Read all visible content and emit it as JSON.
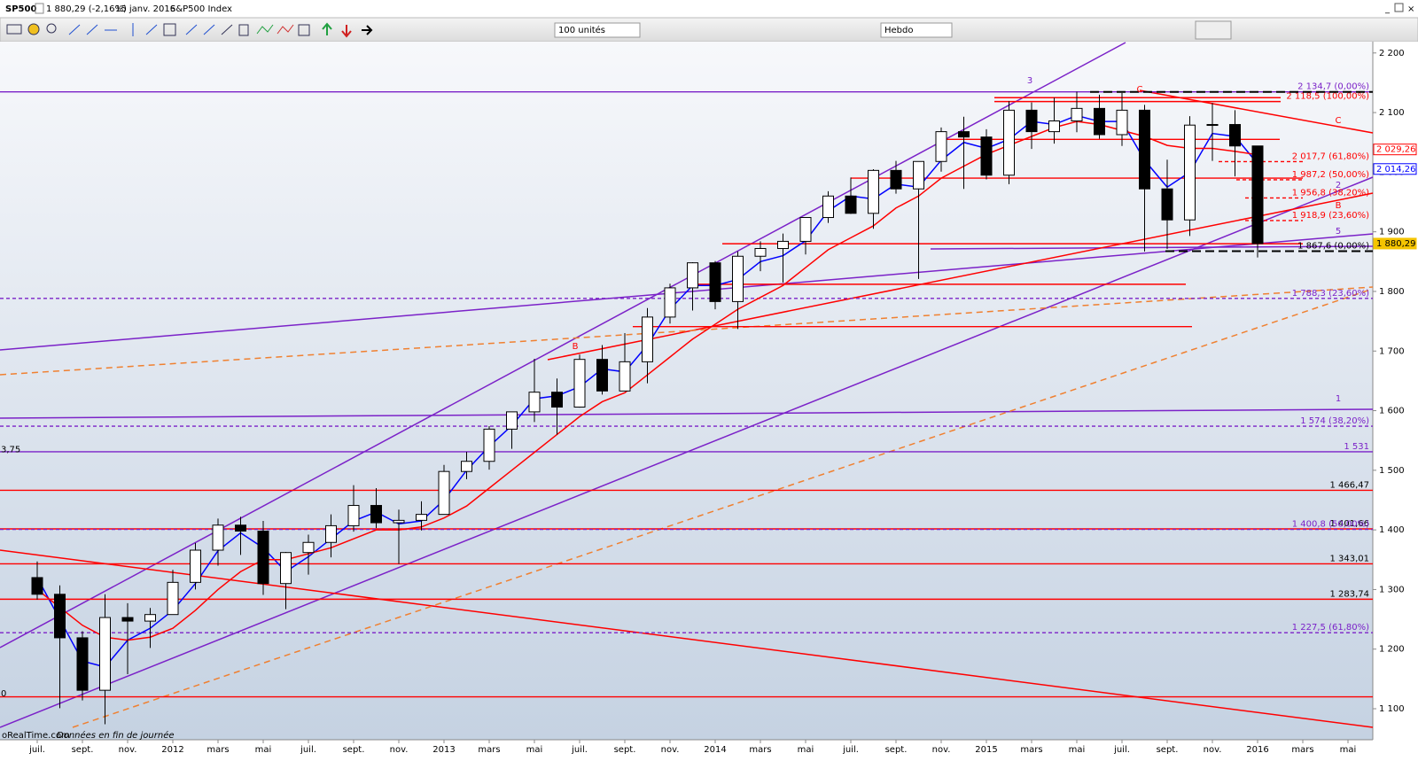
{
  "header": {
    "symbol": "SP500",
    "quote": "1 880,29 (-2,16%)",
    "date": "15 janv. 2016",
    "name": "S&P500 Index"
  },
  "toolbar": {
    "units": "100 unités",
    "period": "Hebdo"
  },
  "footer": {
    "source": "oRealTime.com",
    "note": "Données en fin de journée"
  },
  "chart_data": {
    "type": "candlestick",
    "categories": [
      "juil.",
      null,
      "sept.",
      null,
      "nov.",
      null,
      "2012",
      null,
      "mars",
      null,
      "mai",
      null,
      "juil.",
      null,
      "sept.",
      null,
      "nov.",
      null,
      "2013",
      null,
      "mars",
      null,
      "mai",
      null,
      "juil.",
      null,
      "sept.",
      null,
      "nov.",
      null,
      "2014",
      null,
      "mars",
      null,
      "mai",
      null,
      "juil.",
      null,
      "sept.",
      null,
      "nov.",
      null,
      "2015",
      null,
      "mars",
      null,
      "mai",
      null,
      "juil.",
      null,
      "sept.",
      null,
      "nov.",
      null,
      "2016",
      null,
      "mars",
      null,
      "mai"
    ],
    "open": [
      1320,
      1292,
      1219,
      1131,
      1253,
      1247,
      1258,
      1312,
      1366,
      1408,
      1398,
      1310,
      1362,
      1379,
      1407,
      1441,
      1412,
      1416,
      1426,
      1498,
      1515,
      1569,
      1598,
      1631,
      1606,
      1686,
      1633,
      1682,
      1757,
      1806,
      1848,
      1783,
      1859,
      1872,
      1884,
      1924,
      1960,
      1931,
      2003,
      1972,
      2018,
      2068,
      2059,
      1995,
      2104,
      2068,
      2086,
      2107,
      2063,
      2104,
      1972,
      1920,
      2079,
      2080,
      2044,
      null,
      null,
      null,
      null
    ],
    "high": [
      1347,
      1307,
      1230,
      1292,
      1277,
      1269,
      1333,
      1378,
      1419,
      1422,
      1415,
      1363,
      1392,
      1426,
      1475,
      1470,
      1434,
      1448,
      1509,
      1531,
      1574,
      1598,
      1687,
      1654,
      1694,
      1710,
      1730,
      1772,
      1813,
      1849,
      1851,
      1867,
      1884,
      1897,
      1924,
      1968,
      1991,
      2005,
      2019,
      2018,
      2075,
      2093,
      2072,
      2119,
      2117,
      2125,
      2135,
      2130,
      2133,
      2113,
      2021,
      2094,
      2116,
      2104,
      2038,
      null,
      null,
      null,
      null
    ],
    "low": [
      1283,
      1101,
      1114,
      1074,
      1158,
      1202,
      1258,
      1300,
      1340,
      1358,
      1291,
      1267,
      1325,
      1354,
      1397,
      1403,
      1343,
      1399,
      1426,
      1485,
      1501,
      1536,
      1581,
      1560,
      1605,
      1627,
      1633,
      1646,
      1746,
      1768,
      1770,
      1737,
      1834,
      1815,
      1862,
      1915,
      1930,
      1905,
      1964,
      1821,
      2001,
      1972,
      1988,
      1980,
      2039,
      2048,
      2067,
      2056,
      2044,
      1867,
      1871,
      1893,
      2019,
      1993,
      1857,
      null,
      null,
      null,
      null
    ],
    "close": [
      1292,
      1219,
      1131,
      1253,
      1247,
      1258,
      1312,
      1366,
      1408,
      1398,
      1310,
      1362,
      1379,
      1407,
      1441,
      1412,
      1416,
      1426,
      1498,
      1515,
      1569,
      1598,
      1631,
      1606,
      1686,
      1633,
      1682,
      1757,
      1806,
      1848,
      1783,
      1859,
      1872,
      1884,
      1924,
      1960,
      1931,
      2003,
      1972,
      2018,
      2068,
      2059,
      1995,
      2104,
      2068,
      2086,
      2107,
      2063,
      2104,
      1972,
      1920,
      2079,
      2080,
      2044,
      1880.29,
      null,
      null,
      null,
      null
    ],
    "up_color": "#ffffff",
    "down_color": "#000000",
    "moving_averages": [
      {
        "color": "#0000ff",
        "values": [
          1320,
          1250,
          1180,
          1170,
          1215,
          1235,
          1265,
          1310,
          1365,
          1395,
          1370,
          1330,
          1355,
          1385,
          1415,
          1430,
          1410,
          1415,
          1450,
          1500,
          1540,
          1575,
          1620,
          1625,
          1640,
          1670,
          1665,
          1710,
          1770,
          1810,
          1810,
          1820,
          1850,
          1860,
          1885,
          1935,
          1960,
          1955,
          1980,
          1975,
          2020,
          2050,
          2040,
          2055,
          2085,
          2080,
          2095,
          2085,
          2085,
          2020,
          1975,
          2000,
          2065,
          2060,
          2014.26,
          null,
          null,
          null,
          null
        ]
      },
      {
        "color": "#ff0000",
        "values": [
          1300,
          1270,
          1240,
          1220,
          1215,
          1220,
          1235,
          1265,
          1300,
          1330,
          1350,
          1350,
          1360,
          1370,
          1385,
          1400,
          1400,
          1405,
          1420,
          1440,
          1470,
          1500,
          1530,
          1560,
          1590,
          1615,
          1630,
          1660,
          1690,
          1720,
          1745,
          1770,
          1790,
          1810,
          1840,
          1870,
          1890,
          1910,
          1940,
          1960,
          1990,
          2010,
          2030,
          2045,
          2060,
          2075,
          2085,
          2080,
          2070,
          2060,
          2045,
          2040,
          2040,
          2035,
          2029.26,
          null,
          null,
          null,
          null
        ]
      }
    ],
    "ylim": [
      1048,
      2219
    ],
    "yticks": [
      {
        "value": 1100,
        "label": "1 100"
      },
      {
        "value": 1200,
        "label": "1 200"
      },
      {
        "value": 1300,
        "label": "1 300"
      },
      {
        "value": 1400,
        "label": "1 400"
      },
      {
        "value": 1500,
        "label": "1 500"
      },
      {
        "value": 1600,
        "label": "1 600"
      },
      {
        "value": 1700,
        "label": "1 700"
      },
      {
        "value": 1800,
        "label": "1 800"
      },
      {
        "value": 1900,
        "label": "1 900"
      },
      {
        "value": 2000,
        "label": "2 000"
      },
      {
        "value": 2100,
        "label": "2 100"
      },
      {
        "value": 2200,
        "label": "2 200"
      }
    ],
    "levels": [
      {
        "value": 2134.7,
        "label": "2 134,7 (0,00%)",
        "color": "#7b22c8",
        "dash": false
      },
      {
        "value": 2125,
        "color": "#ff0000",
        "dash": false
      },
      {
        "value": 2118.5,
        "label": "2 118,5 (100,00%)",
        "color": "#ff0000",
        "dash": false
      },
      {
        "value": 2055,
        "color": "#ff0000",
        "dash": false
      },
      {
        "value": 2017.7,
        "label": "2 017,7 (61,80%)",
        "color": "#ff0000",
        "dash": true
      },
      {
        "value": 1987.2,
        "label": "1 987,2 (50,00%)",
        "color": "#ff0000",
        "dash": true
      },
      {
        "value": 1990,
        "color": "#ff0000",
        "dash": false
      },
      {
        "value": 1956.8,
        "label": "1 956,8 (38,20%)",
        "color": "#ff0000",
        "dash": true
      },
      {
        "value": 1918.9,
        "label": "1 918,9 (23,60%)",
        "color": "#ff0000",
        "dash": true
      },
      {
        "value": 1880,
        "color": "#ff0000",
        "dash": false
      },
      {
        "value": 1867.6,
        "label": "1 867,6 (0,00%)",
        "color": "#000000",
        "dash": true
      },
      {
        "value": 1812,
        "color": "#ff0000",
        "dash": false
      },
      {
        "value": 1788.3,
        "label": "1 788,3 (23,60%)",
        "color": "#7b22c8",
        "dash": true
      },
      {
        "value": 1741,
        "color": "#ff0000",
        "dash": false
      },
      {
        "value": 1574,
        "label": "1 574 (38,20%)",
        "color": "#7b22c8",
        "dash": true
      },
      {
        "value": 1531,
        "label": "1 531",
        "color": "#7b22c8",
        "dash": false
      },
      {
        "value": 1466.47,
        "label": "1 466,47",
        "color": "#ff0000",
        "dash": false
      },
      {
        "value": 1401.66,
        "label": "1 401,66",
        "color": "#ff0000",
        "dash": false
      },
      {
        "value": 1400.8,
        "label": "1 400,8 (50,00%)",
        "color": "#7b22c8",
        "dash": true
      },
      {
        "value": 1343.01,
        "label": "1 343,01",
        "color": "#ff0000",
        "dash": false
      },
      {
        "value": 1283.74,
        "label": "1 283,74",
        "color": "#ff0000",
        "dash": false
      },
      {
        "value": 1227.5,
        "label": "1 227,5 (61,80%)",
        "color": "#7b22c8",
        "dash": true
      },
      {
        "value": 1120,
        "color": "#ff0000",
        "dash": false
      },
      {
        "value": 2134.7,
        "color": "#000000",
        "dash": true
      }
    ],
    "wave_labels": [
      "3",
      "C",
      "C",
      "2",
      "B",
      "5",
      "1",
      "B"
    ],
    "price_tags": [
      {
        "value": 2029.26,
        "label": "2 029,26",
        "color": "#ff0000"
      },
      {
        "value": 2014.26,
        "label": "2 014,26",
        "color": "#0000ff"
      },
      {
        "value": 1880.29,
        "label": "1 880,29",
        "color": "#f5c400"
      }
    ],
    "edge_labels": [
      "3,75",
      "0"
    ]
  }
}
